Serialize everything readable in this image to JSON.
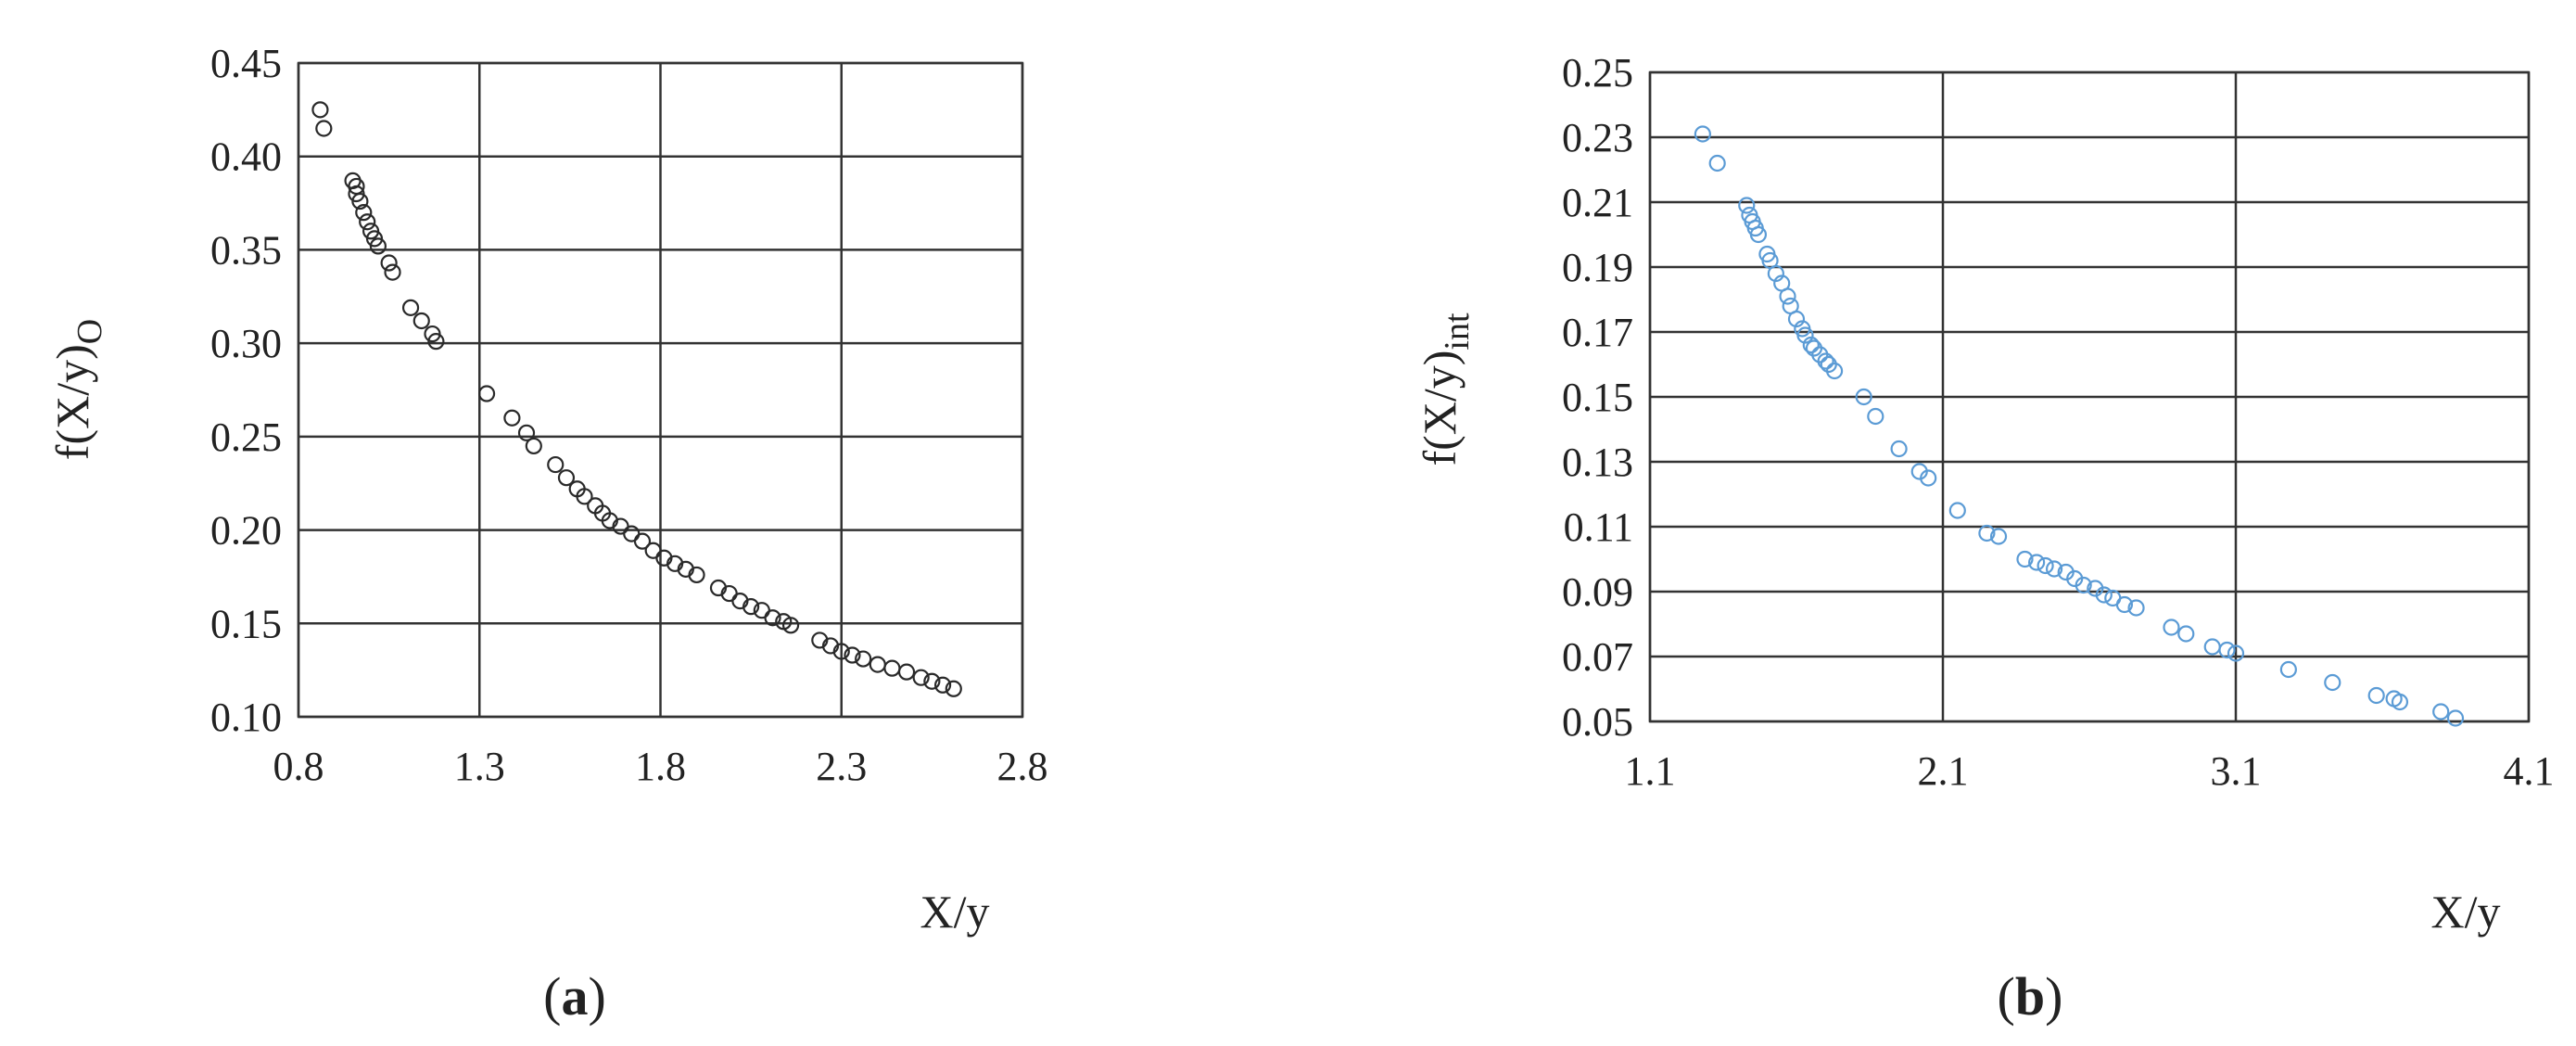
{
  "chart_data": [
    {
      "type": "scatter",
      "panel_label_open": "(",
      "panel_label_letter": "a",
      "panel_label_close": ")",
      "xlabel": "X/y",
      "ylabel": "f(X/y)",
      "ylabel_subscript": "O",
      "xlim": [
        0.8,
        2.8
      ],
      "ylim": [
        0.1,
        0.45
      ],
      "xticks": [
        "0.8",
        "1.3",
        "1.8",
        "2.3",
        "2.8"
      ],
      "yticks": [
        "0.10",
        "0.15",
        "0.20",
        "0.25",
        "0.30",
        "0.35",
        "0.40",
        "0.45"
      ],
      "grid": true,
      "marker": "hollow-circle",
      "color": "#2a2a2a",
      "series": [
        {
          "x": [
            0.86,
            0.87,
            0.95,
            0.96,
            0.96,
            0.97,
            0.98,
            0.99,
            1.0,
            1.01,
            1.02,
            1.05,
            1.06,
            1.11,
            1.14,
            1.17,
            1.18,
            1.32,
            1.39,
            1.43,
            1.45,
            1.51,
            1.54,
            1.57,
            1.59,
            1.62,
            1.64,
            1.66,
            1.69,
            1.72,
            1.75,
            1.78,
            1.81,
            1.84,
            1.87,
            1.9,
            1.96,
            1.99,
            2.02,
            2.05,
            2.08,
            2.11,
            2.14,
            2.16,
            2.24,
            2.27,
            2.3,
            2.33,
            2.36,
            2.4,
            2.44,
            2.48,
            2.52,
            2.55,
            2.58,
            2.61
          ],
          "y": [
            0.425,
            0.415,
            0.387,
            0.384,
            0.38,
            0.376,
            0.37,
            0.365,
            0.36,
            0.356,
            0.352,
            0.343,
            0.338,
            0.319,
            0.312,
            0.305,
            0.301,
            0.273,
            0.26,
            0.252,
            0.245,
            0.235,
            0.228,
            0.222,
            0.218,
            0.213,
            0.209,
            0.205,
            0.202,
            0.198,
            0.194,
            0.189,
            0.185,
            0.182,
            0.179,
            0.176,
            0.169,
            0.166,
            0.162,
            0.159,
            0.157,
            0.153,
            0.151,
            0.149,
            0.141,
            0.138,
            0.135,
            0.133,
            0.131,
            0.128,
            0.126,
            0.124,
            0.121,
            0.119,
            0.117,
            0.115
          ]
        }
      ]
    },
    {
      "type": "scatter",
      "panel_label_open": "(",
      "panel_label_letter": "b",
      "panel_label_close": ")",
      "xlabel": "X/y",
      "ylabel": "f(X/y)",
      "ylabel_subscript": "int",
      "xlim": [
        1.1,
        4.1
      ],
      "ylim": [
        0.05,
        0.25
      ],
      "xticks": [
        "1.1",
        "2.1",
        "3.1",
        "4.1"
      ],
      "yticks": [
        "0.05",
        "0.07",
        "0.09",
        "0.11",
        "0.13",
        "0.15",
        "0.17",
        "0.19",
        "0.21",
        "0.23",
        "0.25"
      ],
      "grid": true,
      "marker": "hollow-circle",
      "color": "#5b9bd5",
      "series": [
        {
          "x": [
            1.28,
            1.33,
            1.43,
            1.44,
            1.45,
            1.46,
            1.47,
            1.5,
            1.51,
            1.53,
            1.55,
            1.57,
            1.58,
            1.6,
            1.62,
            1.63,
            1.65,
            1.66,
            1.68,
            1.7,
            1.71,
            1.73,
            1.83,
            1.87,
            1.95,
            2.02,
            2.05,
            2.15,
            2.25,
            2.29,
            2.38,
            2.42,
            2.45,
            2.48,
            2.52,
            2.55,
            2.58,
            2.62,
            2.65,
            2.68,
            2.72,
            2.76,
            2.88,
            2.93,
            3.02,
            3.07,
            3.1,
            3.28,
            3.43,
            3.58,
            3.64,
            3.66,
            3.8,
            3.85
          ],
          "y": [
            0.231,
            0.222,
            0.209,
            0.206,
            0.204,
            0.202,
            0.2,
            0.194,
            0.192,
            0.188,
            0.185,
            0.181,
            0.178,
            0.174,
            0.171,
            0.169,
            0.166,
            0.165,
            0.163,
            0.161,
            0.16,
            0.158,
            0.15,
            0.144,
            0.134,
            0.127,
            0.125,
            0.115,
            0.108,
            0.107,
            0.1,
            0.099,
            0.098,
            0.097,
            0.096,
            0.094,
            0.092,
            0.091,
            0.089,
            0.088,
            0.086,
            0.085,
            0.079,
            0.077,
            0.073,
            0.072,
            0.071,
            0.066,
            0.062,
            0.058,
            0.057,
            0.056,
            0.053,
            0.051
          ]
        }
      ]
    }
  ]
}
